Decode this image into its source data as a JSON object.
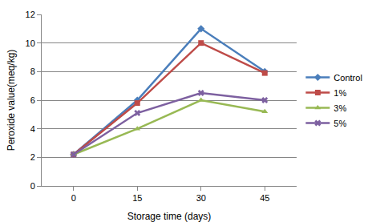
{
  "chart_data": {
    "type": "line",
    "x_label": "Storage time (days)",
    "y_label": "Peroxide value(meq/kg)",
    "categories": [
      "0",
      "15",
      "30",
      "45"
    ],
    "series": [
      {
        "name": "Control",
        "color": "#4a7ebb",
        "marker": "diamond",
        "line_style": "solid",
        "values": [
          2.2,
          6.0,
          11.0,
          8.0
        ]
      },
      {
        "name": "1%",
        "color": "#be4b48",
        "marker": "square",
        "line_style": "solid",
        "values": [
          2.2,
          5.8,
          10.0,
          7.9
        ]
      },
      {
        "name": "3%",
        "color": "#98b954",
        "marker": "triangle-up",
        "line_style": "solid",
        "values": [
          2.2,
          4.0,
          6.0,
          5.2
        ]
      },
      {
        "name": "5%",
        "color": "#7d60a0",
        "marker": "x",
        "line_style": "solid",
        "values": [
          2.2,
          5.1,
          6.5,
          6.0
        ]
      }
    ],
    "ylim": [
      0,
      12
    ],
    "yticks": [
      0,
      2,
      4,
      6,
      8,
      10,
      12
    ],
    "grid": true,
    "legend": "right"
  }
}
